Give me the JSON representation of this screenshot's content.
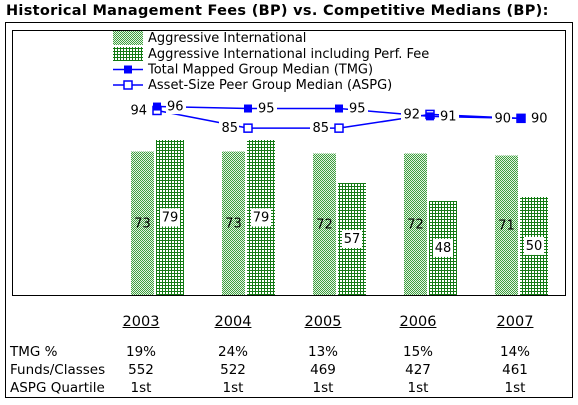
{
  "chart_data": {
    "type": "bar",
    "title": "Historical Management Fees (BP) vs. Competitive Medians (BP):",
    "categories": [
      "2003",
      "2004",
      "2005",
      "2006",
      "2007"
    ],
    "series": [
      {
        "name": "Aggressive International",
        "type": "bar",
        "pattern": "dotted",
        "color": "#3f9f3f",
        "values": [
          73,
          73,
          72,
          72,
          71
        ]
      },
      {
        "name": "Aggressive International including Perf. Fee",
        "type": "bar",
        "pattern": "grid",
        "color": "#137a13",
        "values": [
          79,
          79,
          57,
          48,
          50
        ]
      },
      {
        "name": "Total Mapped Group Median (TMG)",
        "type": "line",
        "marker": "filled-square",
        "color": "#0000ff",
        "values": [
          96,
          95,
          95,
          91,
          90
        ]
      },
      {
        "name": "Asset-Size Peer Group Median (ASPG)",
        "type": "line",
        "marker": "hollow-square",
        "color": "#0000ff",
        "values": [
          94,
          85,
          85,
          92,
          90
        ]
      }
    ],
    "ylim": [
      0,
      135
    ],
    "grid": false,
    "legend": "top"
  },
  "table": {
    "rows": [
      {
        "label": "TMG %",
        "values": [
          "19%",
          "24%",
          "13%",
          "15%",
          "14%"
        ]
      },
      {
        "label": "Funds/Classes",
        "values": [
          "552",
          "522",
          "469",
          "427",
          "461"
        ]
      },
      {
        "label": "ASPG Quartile",
        "values": [
          "1st",
          "1st",
          "1st",
          "1st",
          "1st"
        ]
      }
    ]
  }
}
